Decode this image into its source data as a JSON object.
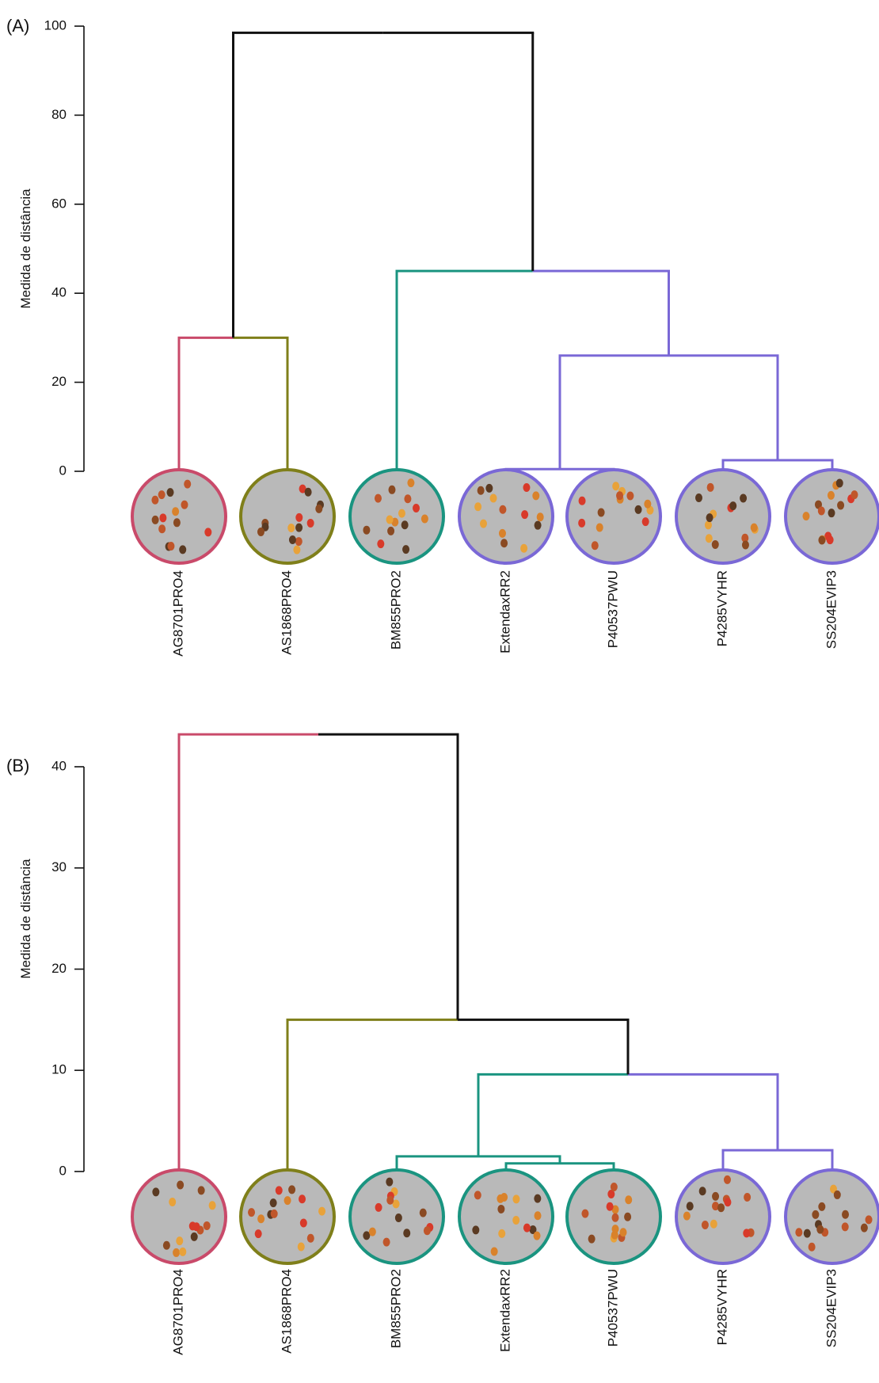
{
  "chart_data": [
    {
      "type": "dendrogram",
      "panel_label": "(A)",
      "ylabel": "Medida de distância",
      "ylim": [
        0,
        100
      ],
      "yticks": [
        0,
        20,
        40,
        60,
        80,
        100
      ],
      "leaves": [
        {
          "label": "AG8701PRO4",
          "color": "#c94a6a"
        },
        {
          "label": "AS1868PRO4",
          "color": "#7f7f1a"
        },
        {
          "label": "BM855PRO2",
          "color": "#1a9480"
        },
        {
          "label": "ExtendaxRR2",
          "color": "#7a68d6"
        },
        {
          "label": "P40537PWU",
          "color": "#7a68d6"
        },
        {
          "label": "P4285VYHR",
          "color": "#7a68d6"
        },
        {
          "label": "SS204EVIP3",
          "color": "#7a68d6"
        }
      ],
      "merges": [
        {
          "a": "ExtendaxRR2",
          "b": "P40537PWU",
          "height": 0.5
        },
        {
          "a": "P4285VYHR",
          "b": "SS204EVIP3",
          "height": 2.5
        },
        {
          "a": 0,
          "b": 1,
          "height": 26
        },
        {
          "a": "BM855PRO2",
          "b": 2,
          "height": 45
        },
        {
          "a": "AG8701PRO4",
          "b": "AS1868PRO4",
          "height": 30
        },
        {
          "a": 4,
          "b": 3,
          "height": 98.5
        }
      ]
    },
    {
      "type": "dendrogram",
      "panel_label": "(B)",
      "ylabel": "Medida de distância",
      "ylim": [
        0,
        40
      ],
      "yticks": [
        0,
        10,
        20,
        30,
        40
      ],
      "leaves": [
        {
          "label": "AG8701PRO4",
          "color": "#c94a6a"
        },
        {
          "label": "AS1868PRO4",
          "color": "#7f7f1a"
        },
        {
          "label": "BM855PRO2",
          "color": "#1a9480"
        },
        {
          "label": "ExtendaxRR2",
          "color": "#1a9480"
        },
        {
          "label": "P40537PWU",
          "color": "#1a9480"
        },
        {
          "label": "P4285VYHR",
          "color": "#7a68d6"
        },
        {
          "label": "SS204EVIP3",
          "color": "#7a68d6"
        }
      ],
      "merges": [
        {
          "a": "ExtendaxRR2",
          "b": "P40537PWU",
          "height": 0.8
        },
        {
          "a": "BM855PRO2",
          "b": 0,
          "height": 1.5
        },
        {
          "a": "P4285VYHR",
          "b": "SS204EVIP3",
          "height": 2.1
        },
        {
          "a": 1,
          "b": 2,
          "height": 9.6
        },
        {
          "a": "AS1868PRO4",
          "b": 3,
          "height": 15
        },
        {
          "a": "AG8701PRO4",
          "b": 4,
          "height": 43.2
        }
      ]
    }
  ],
  "colors": {
    "merge_above_clusters": "#111111",
    "photo_background": "#b9b9b9"
  }
}
